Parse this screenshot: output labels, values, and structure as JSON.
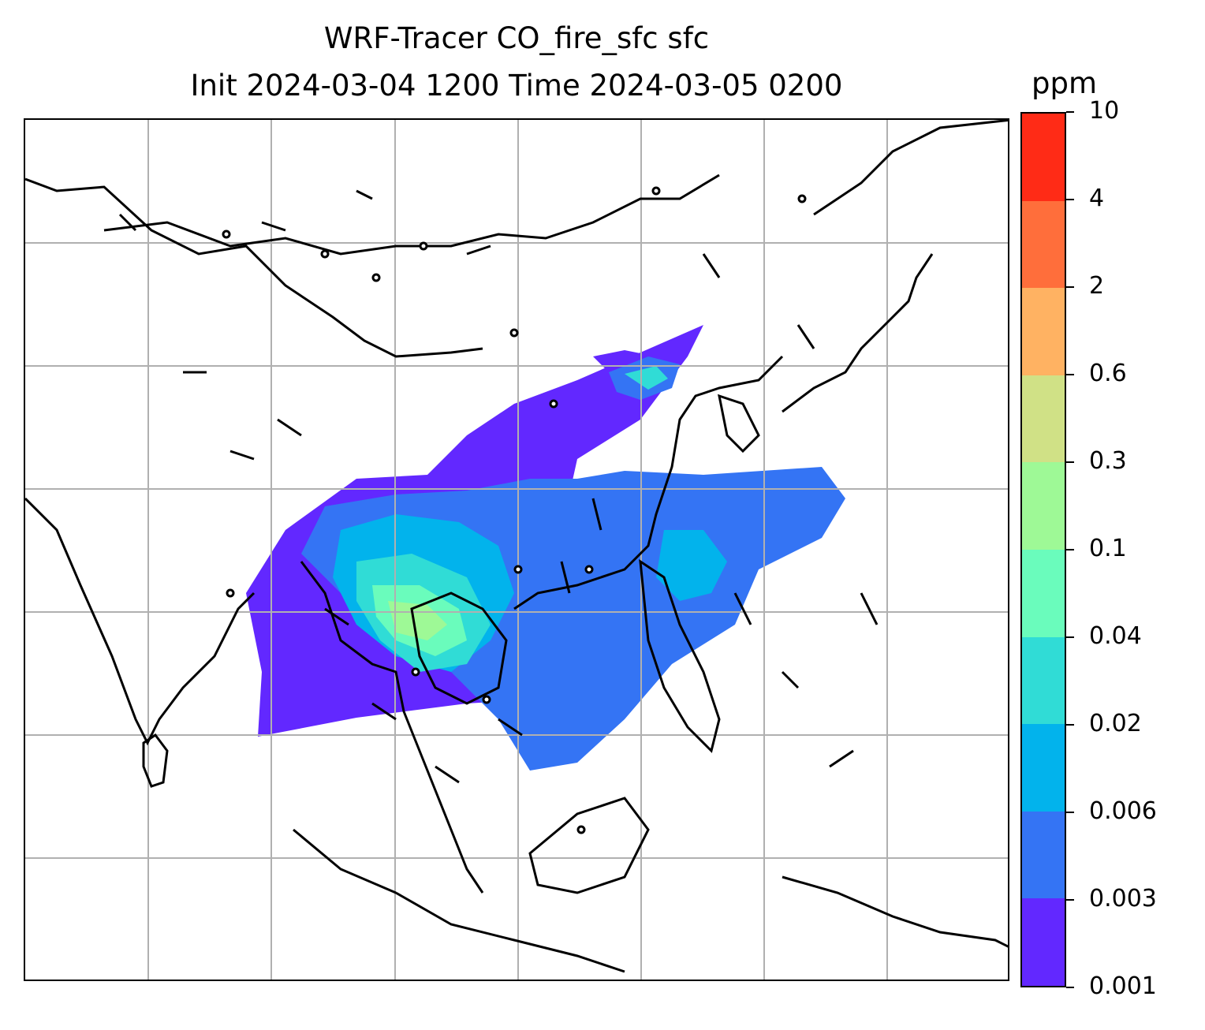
{
  "title_line1": "WRF-Tracer CO_fire_sfc sfc",
  "title_line2": "Init 2024-03-04 1200 Time 2024-03-05 0200",
  "colorbar": {
    "unit": "ppm",
    "levels": [
      "0.001",
      "0.003",
      "0.006",
      "0.02",
      "0.04",
      "0.1",
      "0.3",
      "0.6",
      "2",
      "4",
      "10"
    ],
    "colors": [
      "#6228ff",
      "#3474f4",
      "#02b3ec",
      "#30dcd6",
      "#6afcbc",
      "#9ef996",
      "#d0e186",
      "#ffb262",
      "#ff6e3b",
      "#ff2b16"
    ]
  },
  "map": {
    "gridlines": "on",
    "coastline_color": "#000000",
    "barb_symbol_calm": "circle",
    "plume_colors_shown": [
      "#6228ff",
      "#3474f4",
      "#02b3ec",
      "#30dcd6",
      "#6afcbc",
      "#9ef996"
    ]
  }
}
